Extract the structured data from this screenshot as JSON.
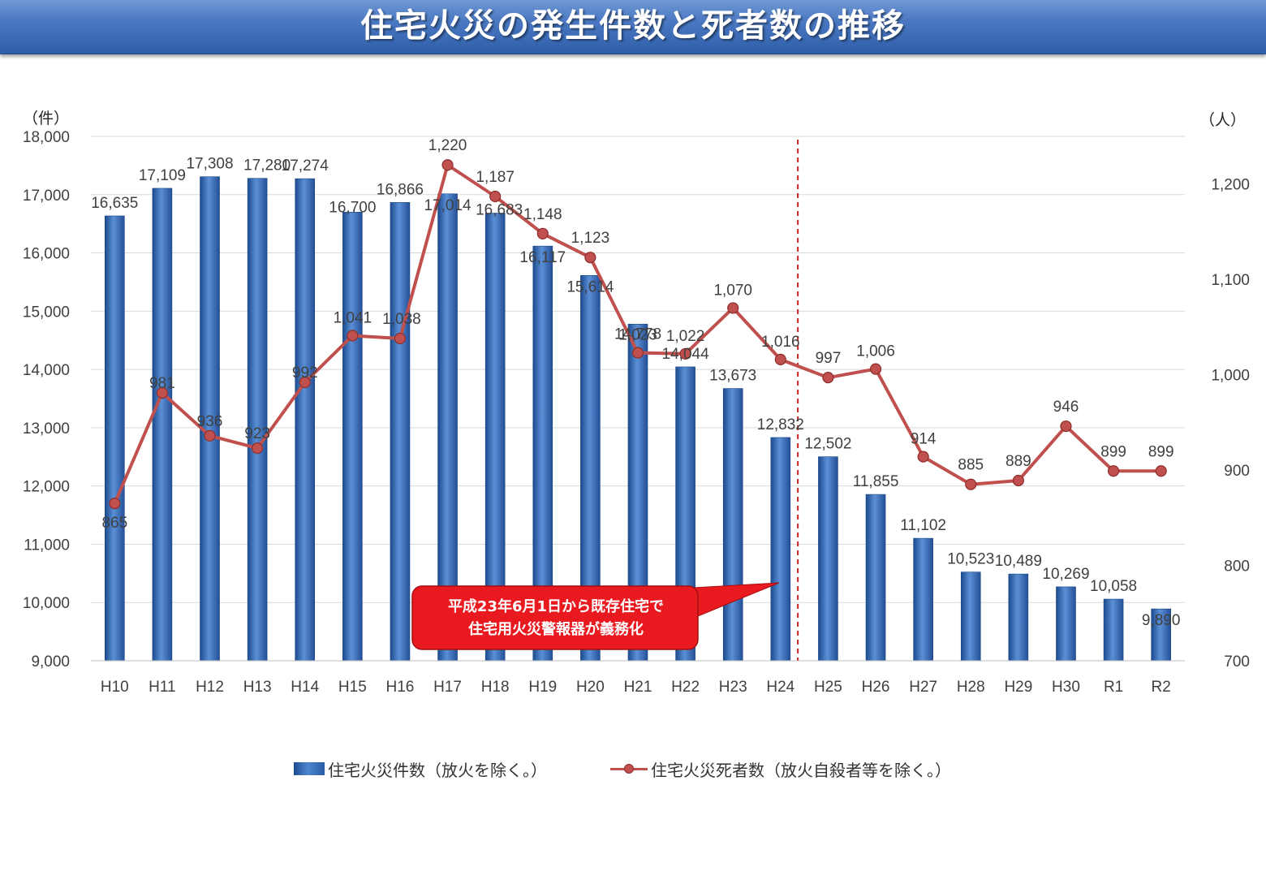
{
  "title": "住宅火災の発生件数と死者数の推移",
  "callout": {
    "line1": "平成23年6月1日から既存住宅で",
    "line2": "住宅用火災警報器が義務化"
  },
  "colors": {
    "bar": "#3a6fbd",
    "line": "#c0504d",
    "reference_line": "#cc2222",
    "callout": "#e8191f"
  },
  "chart_data": {
    "type": "bar",
    "categories": [
      "H10",
      "H11",
      "H12",
      "H13",
      "H14",
      "H15",
      "H16",
      "H17",
      "H18",
      "H19",
      "H20",
      "H21",
      "H22",
      "H23",
      "H24",
      "H25",
      "H26",
      "H27",
      "H28",
      "H29",
      "H30",
      "R1",
      "R2"
    ],
    "series": [
      {
        "name": "住宅火災件数（放火を除く。）",
        "type": "bar",
        "axis": "left",
        "values": [
          16635,
          17109,
          17308,
          17280,
          17274,
          16700,
          16866,
          17014,
          16683,
          16117,
          15614,
          14778,
          14044,
          13673,
          12832,
          12502,
          11855,
          11102,
          10523,
          10489,
          10269,
          10058,
          9890
        ],
        "labels": [
          "16,635",
          "17,109",
          "17,308",
          "17,280",
          "17,274",
          "16,700",
          "16,866",
          "17,014",
          "16,683",
          "16,117",
          "15,614",
          "14,778",
          "14,044",
          "13,673",
          "12,832",
          "12,502",
          "11,855",
          "11,102",
          "10,523",
          "10,489",
          "10,269",
          "10,058",
          "9,890"
        ]
      },
      {
        "name": "住宅火災死者数（放火自殺者等を除く。）",
        "type": "line",
        "axis": "right",
        "values": [
          865,
          981,
          936,
          923,
          992,
          1041,
          1038,
          1220,
          1187,
          1148,
          1123,
          1023,
          1022,
          1070,
          1016,
          997,
          1006,
          914,
          885,
          889,
          946,
          899,
          899
        ],
        "labels": [
          "865",
          "981",
          "936",
          "923",
          "992",
          "1,041",
          "1,038",
          "1,220",
          "1,187",
          "1,148",
          "1,123",
          "1,023",
          "1,022",
          "1,070",
          "1,016",
          "997",
          "1,006",
          "914",
          "885",
          "889",
          "946",
          "899",
          "899"
        ]
      }
    ],
    "y_left": {
      "unit": "（件）",
      "ylim": [
        9000,
        18000
      ],
      "ticks": [
        9000,
        10000,
        11000,
        12000,
        13000,
        14000,
        15000,
        16000,
        17000,
        18000
      ],
      "tick_labels": [
        "9,000",
        "10,000",
        "11,000",
        "12,000",
        "13,000",
        "14,000",
        "15,000",
        "16,000",
        "17,000",
        "18,000"
      ]
    },
    "y_right": {
      "unit": "（人）",
      "ylim": [
        700,
        1250
      ],
      "ticks": [
        700,
        800,
        900,
        1000,
        1100,
        1200
      ],
      "tick_labels": [
        "700",
        "800",
        "900",
        "1,000",
        "1,100",
        "1,200"
      ]
    },
    "reference_line_after": "H24",
    "grid": true,
    "legend_position": "bottom"
  }
}
